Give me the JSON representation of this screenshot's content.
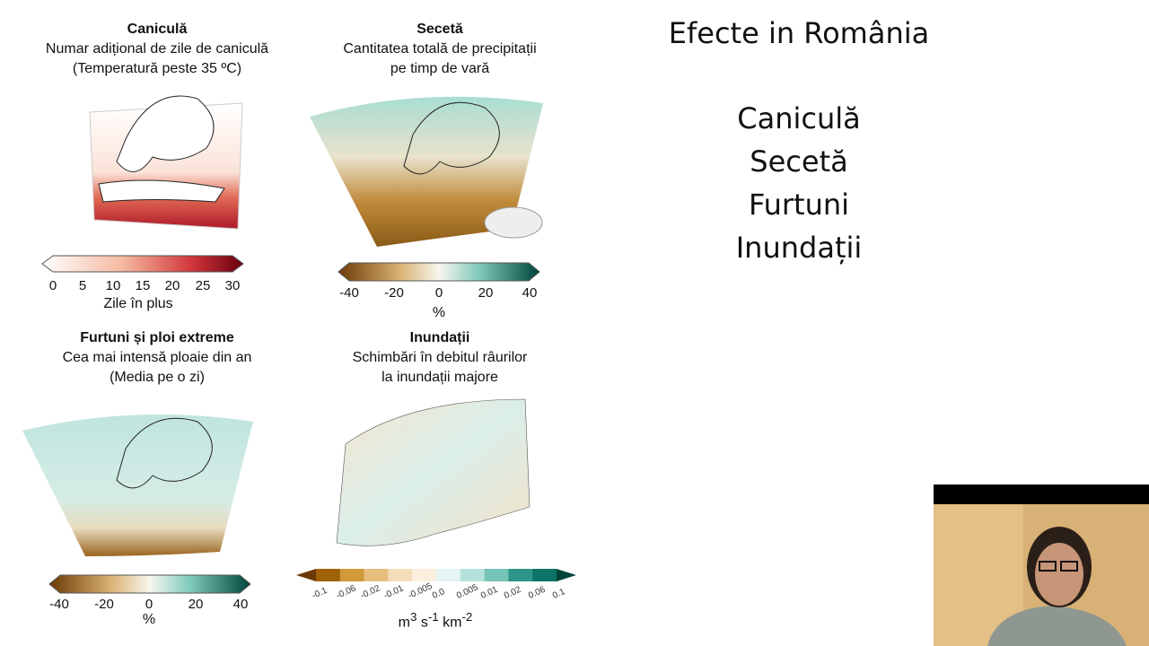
{
  "slide_title": "Efecte in România",
  "effects": [
    "Caniculă",
    "Secetă",
    "Furtuni",
    "Inundații"
  ],
  "panels": [
    {
      "title": "Caniculă",
      "subtitle1": "Numar adițional de zile de caniculă",
      "subtitle2": "(Temperatură peste 35 ºC)",
      "ticks": [
        "0",
        "5",
        "10",
        "15",
        "20",
        "25",
        "30"
      ],
      "unit": "Zile în plus",
      "colors": [
        "#ffffff",
        "#f7c8b0",
        "#e0604a",
        "#a50f25",
        "#67000d"
      ]
    },
    {
      "title": "Secetă",
      "subtitle1": "Cantitatea totală de precipitații",
      "subtitle2": "pe timp de vară",
      "ticks": [
        "-40",
        "-20",
        "0",
        "20",
        "40"
      ],
      "unit": "%",
      "colors": [
        "#6b3a06",
        "#c8912e",
        "#f5f0e0",
        "#6fc5b8",
        "#00443a"
      ]
    },
    {
      "title": "Furtuni și ploi extreme",
      "subtitle1": "Cea mai intensă ploaie din an",
      "subtitle2": "(Media pe o zi)",
      "ticks": [
        "-40",
        "-20",
        "0",
        "20",
        "40"
      ],
      "unit": "%",
      "colors": [
        "#6b3a06",
        "#c8912e",
        "#f5f0e0",
        "#6fc5b8",
        "#00443a"
      ]
    },
    {
      "title": "Inundații",
      "subtitle1": "Schimbări în debitul râurilor",
      "subtitle2": "la inundații majore",
      "ticks": [
        "-0.1",
        "-0.06",
        "-0.02",
        "-0.01",
        "-0.005",
        "0.0",
        "0.005",
        "0.01",
        "0.02",
        "0.06",
        "0.1"
      ],
      "unit": "m3 s-1 km-2",
      "colors": [
        "#a06208",
        "#d19a3a",
        "#e7be7e",
        "#f4ddb9",
        "#fbefe0",
        "#e4f4f2",
        "#b4e2db",
        "#76c3b7",
        "#2f958a",
        "#0d7366"
      ]
    }
  ]
}
